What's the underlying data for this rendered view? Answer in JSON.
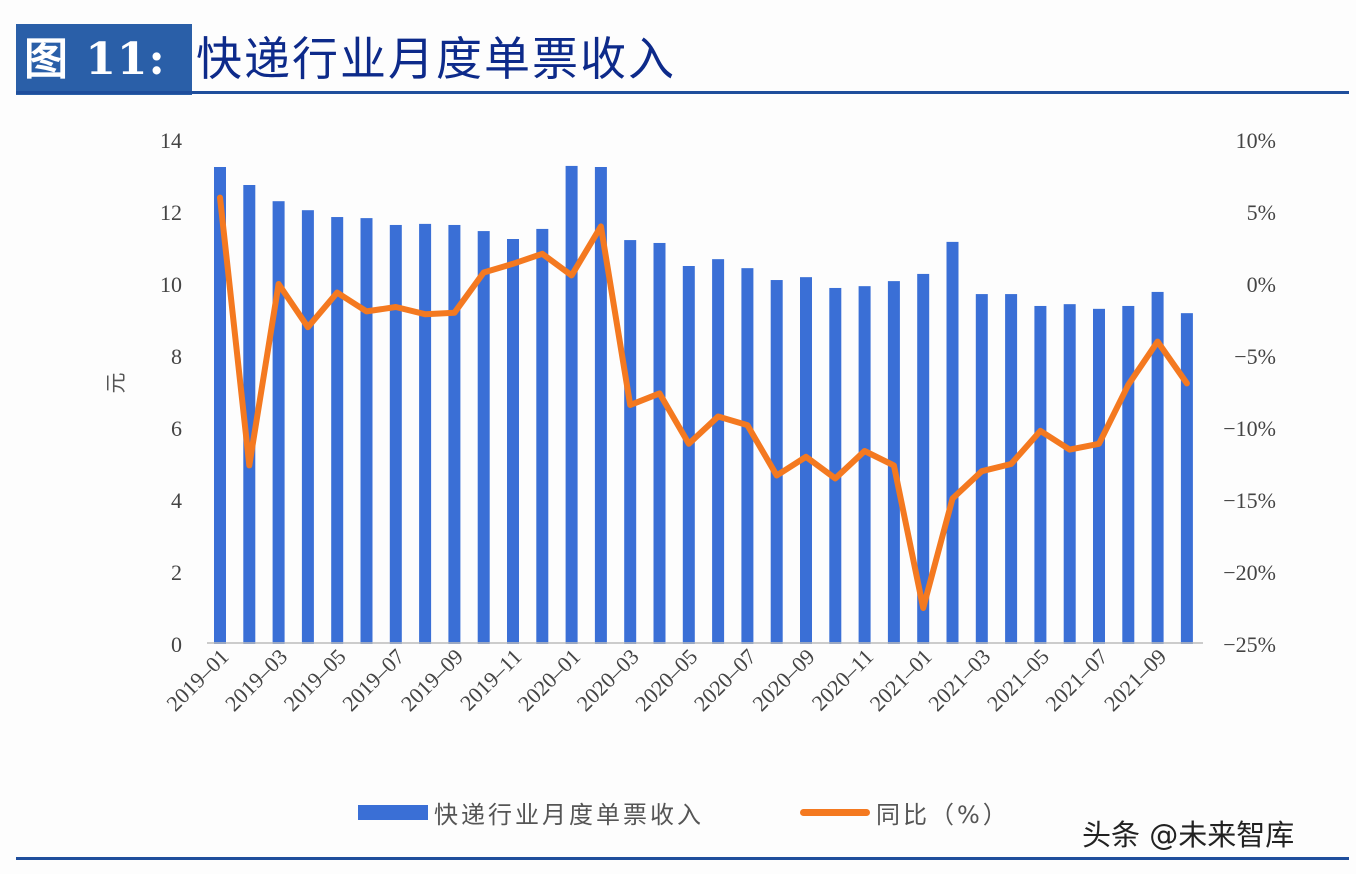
{
  "figure": {
    "label": "图 11:",
    "title": "快递行业月度单票收入",
    "watermark": "头条 @未来智库"
  },
  "colors": {
    "bar": "#3a6fd6",
    "line": "#f47920",
    "title_box": "#2a5fa8",
    "title_text": "#0d2a8a",
    "rule": "#1f4e9c"
  },
  "legend": {
    "bar_label": "快递行业月度单票收入",
    "line_label": "同比（%）"
  },
  "chart_data": {
    "type": "bar+line",
    "title": "快递行业月度单票收入",
    "xlabel": "",
    "ylabel": "元",
    "y2label": "",
    "ylim": [
      0,
      14
    ],
    "y2lim": [
      -25,
      10
    ],
    "yticks": [
      0,
      2,
      4,
      6,
      8,
      10,
      12,
      14
    ],
    "y2ticks": [
      "-25%",
      "-20%",
      "-15%",
      "-10%",
      "-5%",
      "0%",
      "5%",
      "10%"
    ],
    "grid": false,
    "legend_position": "bottom",
    "xtick_labels": [
      "2019-01",
      "2019-03",
      "2019-05",
      "2019-07",
      "2019-09",
      "2019-11",
      "2020-01",
      "2020-03",
      "2020-05",
      "2020-07",
      "2020-09",
      "2020-11",
      "2021-01",
      "2021-03",
      "2021-05",
      "2021-07",
      "2021-09"
    ],
    "categories": [
      "2019-01",
      "2019-02",
      "2019-03",
      "2019-04",
      "2019-05",
      "2019-06",
      "2019-07",
      "2019-08",
      "2019-09",
      "2019-10",
      "2019-11",
      "2019-12",
      "2020-01",
      "2020-02",
      "2020-03",
      "2020-04",
      "2020-05",
      "2020-06",
      "2020-07",
      "2020-08",
      "2020-09",
      "2020-10",
      "2020-11",
      "2020-12",
      "2021-01",
      "2021-02",
      "2021-03",
      "2021-04",
      "2021-05",
      "2021-06",
      "2021-07",
      "2021-08",
      "2021-09",
      "2021-10"
    ],
    "series": [
      {
        "name": "快递行业月度单票收入",
        "type": "bar",
        "axis": "left",
        "unit": "元",
        "values": [
          13.25,
          12.75,
          12.3,
          12.05,
          11.86,
          11.83,
          11.64,
          11.67,
          11.64,
          11.47,
          11.25,
          11.53,
          13.28,
          13.25,
          11.22,
          11.14,
          10.5,
          10.69,
          10.44,
          10.11,
          10.19,
          9.89,
          9.94,
          10.08,
          10.28,
          11.17,
          9.72,
          9.72,
          9.39,
          9.44,
          9.31,
          9.39,
          9.78,
          9.19
        ]
      },
      {
        "name": "同比（%）",
        "type": "line",
        "axis": "right",
        "unit": "%",
        "values": [
          6.0,
          -12.6,
          0.0,
          -3.0,
          -0.6,
          -1.9,
          -1.6,
          -2.1,
          -2.0,
          0.8,
          1.4,
          2.1,
          0.6,
          4.0,
          -8.4,
          -7.6,
          -11.1,
          -9.2,
          -9.8,
          -13.3,
          -12.0,
          -13.5,
          -11.6,
          -12.6,
          -22.5,
          -14.9,
          -13.0,
          -12.5,
          -10.2,
          -11.5,
          -11.1,
          -7.0,
          -4.0,
          -6.9
        ]
      }
    ]
  }
}
